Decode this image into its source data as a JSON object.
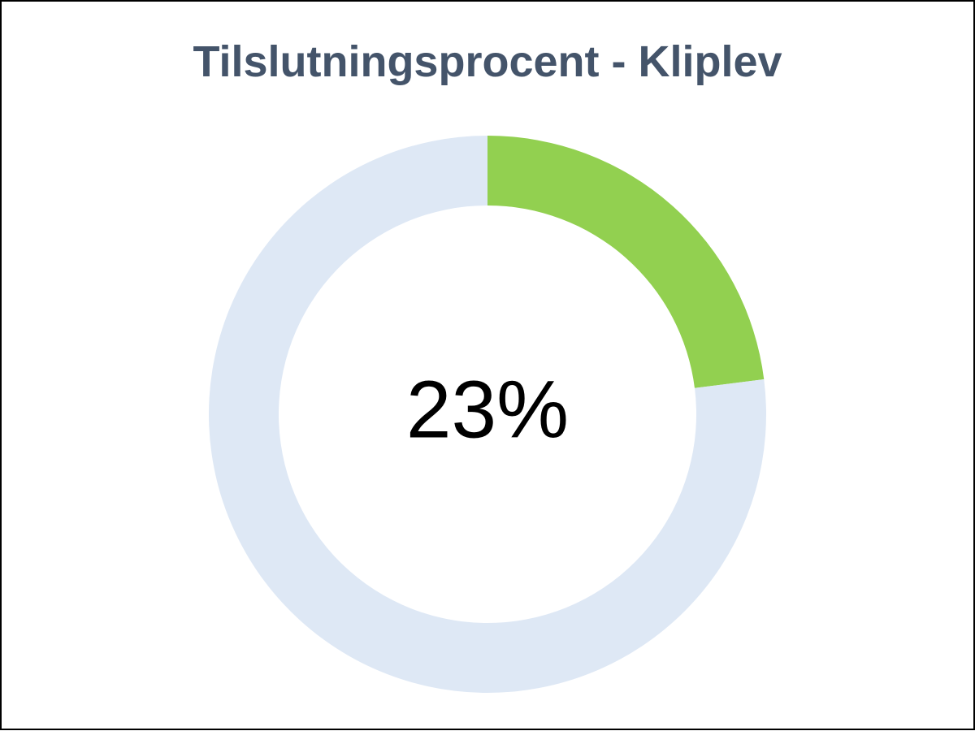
{
  "chart_data": {
    "type": "donut",
    "title": "Tilslutningsprocent - Kliplev",
    "values": [
      23,
      77
    ],
    "value_labels": [
      "23%",
      null
    ],
    "colors": [
      "#92d050",
      "#dee8f5"
    ]
  }
}
